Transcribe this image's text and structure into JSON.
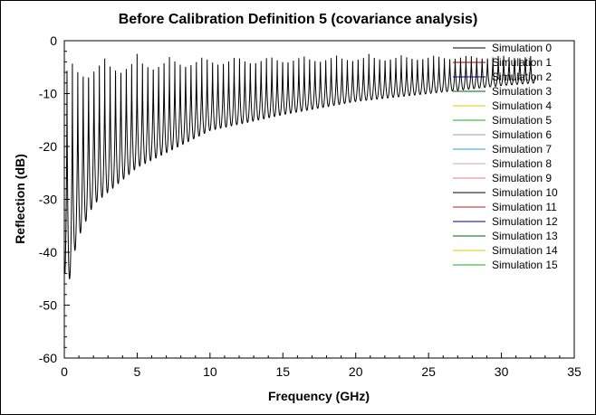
{
  "chart_data": {
    "type": "line",
    "title": "Before Calibration Definition 5 (covariance analysis)",
    "xlabel": "Frequency (GHz)",
    "ylabel": "Reflection (dB)",
    "xlim": [
      0,
      35
    ],
    "ylim": [
      -60,
      0
    ],
    "x_ticks": [
      0,
      5,
      10,
      15,
      20,
      25,
      30,
      35
    ],
    "y_ticks": [
      0,
      -10,
      -20,
      -30,
      -40,
      -50,
      -60
    ],
    "grid": false,
    "legend_position": "top-right",
    "ripple_period_ghz": 0.37,
    "peak_level_db": -2.5,
    "notch_depth_db": [
      [
        0.3,
        -46
      ],
      [
        0.7,
        -40
      ],
      [
        1.0,
        -37
      ],
      [
        2.0,
        -31
      ],
      [
        5.0,
        -24
      ],
      [
        10.0,
        -17
      ],
      [
        15.0,
        -14
      ],
      [
        20.0,
        -11.5
      ],
      [
        25.0,
        -10
      ],
      [
        30.0,
        -8.5
      ],
      [
        32.3,
        -8
      ]
    ],
    "data_range_ghz": [
      0.05,
      32.3
    ],
    "series": [
      {
        "name": "Simulation 0",
        "color": "#000000"
      },
      {
        "name": "Simulation 1",
        "color": "#8b0000"
      },
      {
        "name": "Simulation 2",
        "color": "#00008b"
      },
      {
        "name": "Simulation 3",
        "color": "#006400"
      },
      {
        "name": "Simulation 4",
        "color": "#e6c800"
      },
      {
        "name": "Simulation 5",
        "color": "#22aa22"
      },
      {
        "name": "Simulation 6",
        "color": "#a0a0a0"
      },
      {
        "name": "Simulation 7",
        "color": "#3399cc"
      },
      {
        "name": "Simulation 8",
        "color": "#d9a0c0"
      },
      {
        "name": "Simulation 9",
        "color": "#e08080"
      },
      {
        "name": "Simulation 10",
        "color": "#000000"
      },
      {
        "name": "Simulation 11",
        "color": "#b22222"
      },
      {
        "name": "Simulation 12",
        "color": "#00008b"
      },
      {
        "name": "Simulation 13",
        "color": "#006400"
      },
      {
        "name": "Simulation 14",
        "color": "#e6c800"
      },
      {
        "name": "Simulation 15",
        "color": "#22aa22"
      }
    ]
  }
}
